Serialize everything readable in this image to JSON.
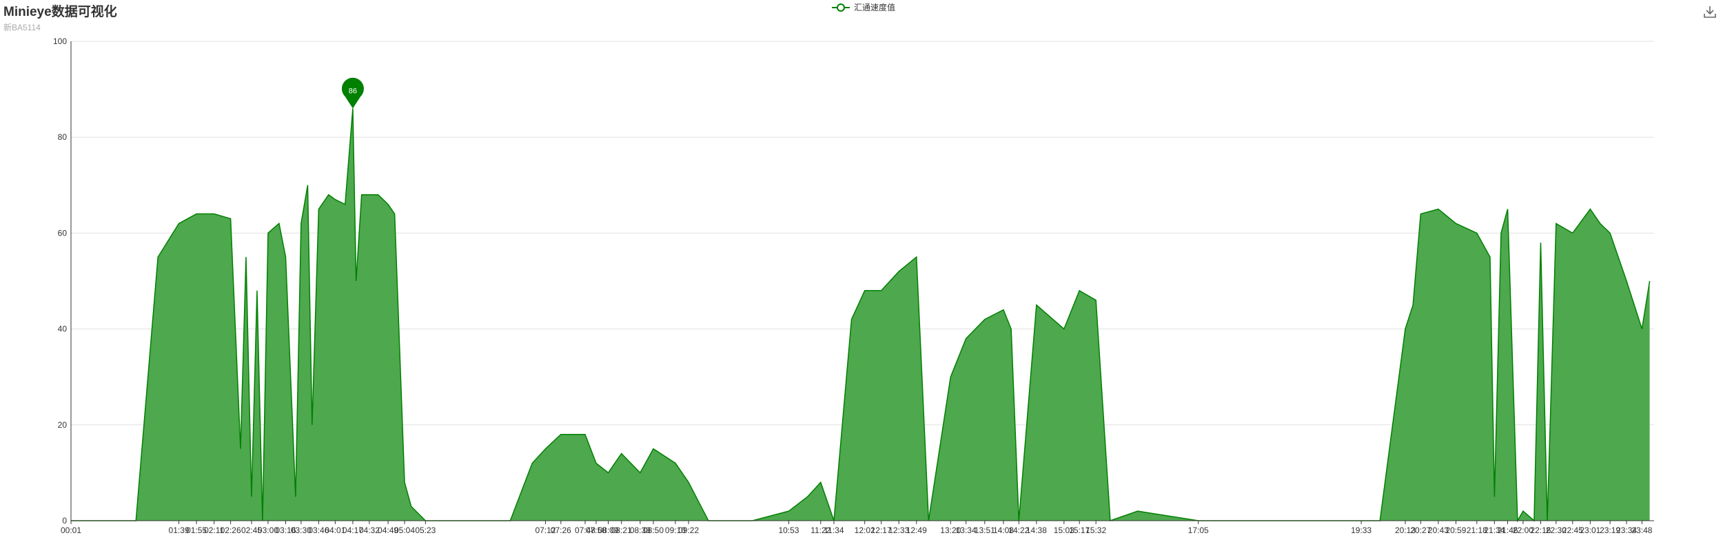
{
  "title": "Minieye数据可视化",
  "subtitle": "新BA5114",
  "colors": {
    "series": "#008000",
    "area": "#4ea84e",
    "grid": "#e0e0e0",
    "axis": "#333333"
  },
  "toolbox": {
    "icon": "download-icon"
  },
  "chart_data": {
    "type": "area",
    "legend": [
      "汇通速度值"
    ],
    "series": [
      {
        "name": "汇通速度值",
        "x": [
          "00:01",
          "00:30",
          "01:00",
          "01:20",
          "01:39",
          "01:55",
          "02:11",
          "02:26",
          "02:35",
          "02:40",
          "02:45",
          "02:50",
          "02:55",
          "03:00",
          "03:10",
          "03:16",
          "03:25",
          "03:30",
          "03:36",
          "03:40",
          "03:46",
          "03:55",
          "04:01",
          "04:10",
          "04:17",
          "04:20",
          "04:25",
          "04:32",
          "04:40",
          "04:49",
          "04:55",
          "05:04",
          "05:10",
          "05:23",
          "05:40",
          "06:10",
          "06:40",
          "07:00",
          "07:12",
          "07:26",
          "07:48",
          "07:58",
          "08:09",
          "08:21",
          "08:38",
          "08:50",
          "09:10",
          "09:22",
          "09:40",
          "10:20",
          "10:53",
          "11:10",
          "11:22",
          "11:34",
          "11:50",
          "12:02",
          "12:17",
          "12:33",
          "12:49",
          "13:00",
          "13:20",
          "13:34",
          "13:51",
          "14:08",
          "14:15",
          "14:22",
          "14:38",
          "15:03",
          "15:17",
          "15:32",
          "15:45",
          "16:10",
          "17:05",
          "18:00",
          "19:33",
          "19:50",
          "20:13",
          "20:20",
          "20:27",
          "20:43",
          "20:59",
          "21:18",
          "21:30",
          "21:34",
          "21:40",
          "21:46",
          "21:55",
          "22:00",
          "22:10",
          "22:16",
          "22:22",
          "22:30",
          "22:45",
          "23:01",
          "23:10",
          "23:19",
          "23:34",
          "23:48",
          "23:55"
        ],
        "values": [
          0,
          0,
          0,
          55,
          62,
          64,
          64,
          63,
          15,
          55,
          5,
          48,
          0,
          60,
          62,
          55,
          5,
          62,
          70,
          20,
          65,
          68,
          67,
          66,
          86,
          50,
          68,
          68,
          68,
          66,
          64,
          8,
          3,
          0,
          0,
          0,
          0,
          12,
          15,
          18,
          18,
          12,
          10,
          14,
          10,
          15,
          12,
          8,
          0,
          0,
          2,
          5,
          8,
          0,
          42,
          48,
          48,
          52,
          55,
          0,
          30,
          38,
          42,
          44,
          40,
          0,
          45,
          40,
          48,
          46,
          0,
          2,
          0,
          0,
          0,
          0,
          40,
          45,
          64,
          65,
          62,
          60,
          55,
          5,
          60,
          65,
          0,
          2,
          0,
          58,
          0,
          62,
          60,
          65,
          62,
          60,
          50,
          40,
          50
        ]
      }
    ],
    "xlabels": [
      "00:01",
      "01:39",
      "01:55",
      "02:11",
      "02:26",
      "02:45",
      "03:00",
      "03:16",
      "03:30",
      "03:46",
      "04:01",
      "04:17",
      "04:32",
      "04:49",
      "05:04",
      "05:23",
      "07:12",
      "07:26",
      "07:48",
      "07:58",
      "08:09",
      "08:21",
      "08:38",
      "08:50",
      "09:10",
      "09:22",
      "10:53",
      "11:22",
      "11:34",
      "12:02",
      "12:17",
      "12:33",
      "12:49",
      "13:20",
      "13:34",
      "13:51",
      "14:08",
      "14:22",
      "14:38",
      "15:03",
      "15:17",
      "15:32",
      "17:05",
      "19:33",
      "20:13",
      "20:27",
      "20:43",
      "20:59",
      "21:18",
      "21:34",
      "21:46",
      "22:00",
      "22:16",
      "22:30",
      "22:45",
      "23:01",
      "23:19",
      "23:34",
      "23:48"
    ],
    "y_ticks": [
      0,
      20,
      40,
      60,
      80,
      100
    ],
    "ylim": [
      0,
      100
    ],
    "grid": true,
    "max_marker": {
      "value": 86,
      "x": "04:17",
      "label": "86"
    }
  }
}
